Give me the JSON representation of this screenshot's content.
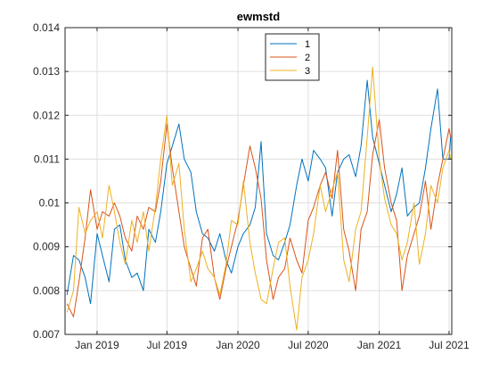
{
  "chart_data": {
    "type": "line",
    "title": "ewmstd",
    "xlabel": "",
    "ylabel": "",
    "ylim": [
      0.007,
      0.014
    ],
    "yticks": [
      0.007,
      0.008,
      0.009,
      0.01,
      0.011,
      0.012,
      0.013,
      0.014
    ],
    "ytick_labels": [
      "0.007",
      "0.008",
      "0.009",
      "0.01",
      "0.011",
      "0.012",
      "0.013",
      "0.014"
    ],
    "xlim": [
      "2018-10-10",
      "2021-07-08"
    ],
    "xticks": [
      "2019-01-01",
      "2019-07-01",
      "2020-01-01",
      "2020-07-01",
      "2021-01-01",
      "2021-07-01"
    ],
    "xtick_labels": [
      "Jan 2019",
      "Jul 2019",
      "Jan 2020",
      "Jul 2020",
      "Jan 2021",
      "Jul 2021"
    ],
    "grid": true,
    "legend_position": "top-center",
    "series": [
      {
        "name": "1",
        "color": "#0072BD",
        "x": [
          "2018-10-15",
          "2018-11-01",
          "2018-11-15",
          "2018-12-01",
          "2018-12-15",
          "2019-01-01",
          "2019-01-15",
          "2019-02-01",
          "2019-02-15",
          "2019-03-01",
          "2019-03-15",
          "2019-04-01",
          "2019-04-15",
          "2019-05-01",
          "2019-05-15",
          "2019-06-01",
          "2019-06-15",
          "2019-07-01",
          "2019-07-15",
          "2019-08-01",
          "2019-08-15",
          "2019-09-01",
          "2019-09-15",
          "2019-10-01",
          "2019-10-15",
          "2019-11-01",
          "2019-11-15",
          "2019-12-01",
          "2019-12-15",
          "2020-01-01",
          "2020-01-15",
          "2020-02-01",
          "2020-02-15",
          "2020-03-01",
          "2020-03-15",
          "2020-04-01",
          "2020-04-15",
          "2020-05-01",
          "2020-05-15",
          "2020-06-01",
          "2020-06-15",
          "2020-07-01",
          "2020-07-15",
          "2020-08-01",
          "2020-08-15",
          "2020-09-01",
          "2020-09-15",
          "2020-10-01",
          "2020-10-15",
          "2020-11-01",
          "2020-11-15",
          "2020-12-01",
          "2020-12-15",
          "2021-01-01",
          "2021-01-15",
          "2021-02-01",
          "2021-02-15",
          "2021-03-01",
          "2021-03-15",
          "2021-04-01",
          "2021-04-15",
          "2021-05-01",
          "2021-05-15",
          "2021-06-01",
          "2021-06-15",
          "2021-07-01",
          "2021-07-05"
        ],
        "values": [
          0.0079,
          0.0088,
          0.0087,
          0.0083,
          0.0077,
          0.0093,
          0.0088,
          0.0082,
          0.0094,
          0.0095,
          0.0087,
          0.0083,
          0.0084,
          0.008,
          0.0094,
          0.0091,
          0.0098,
          0.0109,
          0.0113,
          0.0118,
          0.011,
          0.0107,
          0.0098,
          0.0093,
          0.0092,
          0.0089,
          0.0093,
          0.0087,
          0.0084,
          0.009,
          0.0093,
          0.0095,
          0.0099,
          0.0114,
          0.0093,
          0.0088,
          0.0087,
          0.0091,
          0.0095,
          0.0104,
          0.011,
          0.0105,
          0.0112,
          0.011,
          0.0108,
          0.0097,
          0.0107,
          0.011,
          0.0111,
          0.0106,
          0.0113,
          0.0128,
          0.0115,
          0.0109,
          0.0104,
          0.0098,
          0.0102,
          0.0108,
          0.0097,
          0.0099,
          0.01,
          0.0108,
          0.0117,
          0.0126,
          0.011,
          0.011,
          0.0115
        ]
      },
      {
        "name": "2",
        "color": "#D95319",
        "x": [
          "2018-10-15",
          "2018-11-01",
          "2018-11-15",
          "2018-12-01",
          "2018-12-15",
          "2019-01-01",
          "2019-01-15",
          "2019-02-01",
          "2019-02-15",
          "2019-03-01",
          "2019-03-15",
          "2019-04-01",
          "2019-04-15",
          "2019-05-01",
          "2019-05-15",
          "2019-06-01",
          "2019-06-15",
          "2019-07-01",
          "2019-07-15",
          "2019-08-01",
          "2019-08-15",
          "2019-09-01",
          "2019-09-15",
          "2019-10-01",
          "2019-10-15",
          "2019-11-01",
          "2019-11-15",
          "2019-12-01",
          "2019-12-15",
          "2020-01-01",
          "2020-01-15",
          "2020-02-01",
          "2020-02-15",
          "2020-03-01",
          "2020-03-15",
          "2020-04-01",
          "2020-04-15",
          "2020-05-01",
          "2020-05-15",
          "2020-06-01",
          "2020-06-15",
          "2020-07-01",
          "2020-07-15",
          "2020-08-01",
          "2020-08-15",
          "2020-09-01",
          "2020-09-15",
          "2020-10-01",
          "2020-10-15",
          "2020-11-01",
          "2020-11-15",
          "2020-12-01",
          "2020-12-15",
          "2021-01-01",
          "2021-01-15",
          "2021-02-01",
          "2021-02-15",
          "2021-03-01",
          "2021-03-15",
          "2021-04-01",
          "2021-04-15",
          "2021-05-01",
          "2021-05-15",
          "2021-06-01",
          "2021-06-15",
          "2021-07-01",
          "2021-07-05"
        ],
        "values": [
          0.0077,
          0.0074,
          0.0082,
          0.0092,
          0.0103,
          0.0094,
          0.0098,
          0.0097,
          0.01,
          0.0097,
          0.0092,
          0.0089,
          0.0097,
          0.0094,
          0.0099,
          0.0098,
          0.0105,
          0.0118,
          0.0108,
          0.0098,
          0.009,
          0.0085,
          0.0081,
          0.0092,
          0.0094,
          0.0083,
          0.0078,
          0.0085,
          0.009,
          0.0096,
          0.0104,
          0.0113,
          0.0108,
          0.0101,
          0.0087,
          0.0078,
          0.0083,
          0.0085,
          0.0092,
          0.0087,
          0.0084,
          0.0096,
          0.0099,
          0.0104,
          0.0107,
          0.0101,
          0.0112,
          0.0094,
          0.0089,
          0.008,
          0.0094,
          0.0098,
          0.0111,
          0.0119,
          0.0108,
          0.01,
          0.0096,
          0.008,
          0.0088,
          0.0093,
          0.0097,
          0.0105,
          0.0094,
          0.0104,
          0.011,
          0.0117,
          0.0115
        ]
      },
      {
        "name": "3",
        "color": "#EDB120",
        "x": [
          "2018-10-15",
          "2018-11-01",
          "2018-11-15",
          "2018-12-01",
          "2018-12-15",
          "2019-01-01",
          "2019-01-15",
          "2019-02-01",
          "2019-02-15",
          "2019-03-01",
          "2019-03-15",
          "2019-04-01",
          "2019-04-15",
          "2019-05-01",
          "2019-05-15",
          "2019-06-01",
          "2019-06-15",
          "2019-07-01",
          "2019-07-15",
          "2019-08-01",
          "2019-08-15",
          "2019-09-01",
          "2019-09-15",
          "2019-10-01",
          "2019-10-15",
          "2019-11-01",
          "2019-11-15",
          "2019-12-01",
          "2019-12-15",
          "2020-01-01",
          "2020-01-15",
          "2020-02-01",
          "2020-02-15",
          "2020-03-01",
          "2020-03-15",
          "2020-04-01",
          "2020-04-15",
          "2020-05-01",
          "2020-05-15",
          "2020-06-01",
          "2020-06-15",
          "2020-07-01",
          "2020-07-15",
          "2020-08-01",
          "2020-08-15",
          "2020-09-01",
          "2020-09-15",
          "2020-10-01",
          "2020-10-15",
          "2020-11-01",
          "2020-11-15",
          "2020-12-01",
          "2020-12-15",
          "2021-01-01",
          "2021-01-15",
          "2021-02-01",
          "2021-02-15",
          "2021-03-01",
          "2021-03-15",
          "2021-04-01",
          "2021-04-15",
          "2021-05-01",
          "2021-05-15",
          "2021-06-01",
          "2021-06-15",
          "2021-07-01",
          "2021-07-05"
        ],
        "values": [
          0.0075,
          0.008,
          0.0099,
          0.0093,
          0.0096,
          0.0098,
          0.0092,
          0.0104,
          0.0098,
          0.0091,
          0.0086,
          0.0096,
          0.0091,
          0.0098,
          0.0089,
          0.0099,
          0.011,
          0.012,
          0.0104,
          0.0109,
          0.0094,
          0.0082,
          0.0085,
          0.0089,
          0.0085,
          0.0083,
          0.0079,
          0.0086,
          0.0096,
          0.0095,
          0.0105,
          0.0091,
          0.0084,
          0.0078,
          0.0077,
          0.0085,
          0.0091,
          0.0092,
          0.0081,
          0.0071,
          0.0083,
          0.0087,
          0.0093,
          0.0104,
          0.0098,
          0.0103,
          0.0107,
          0.0087,
          0.0082,
          0.0094,
          0.0098,
          0.0115,
          0.0131,
          0.011,
          0.0101,
          0.0095,
          0.0093,
          0.0087,
          0.0091,
          0.01,
          0.0086,
          0.0093,
          0.0104,
          0.01,
          0.0108,
          0.0112,
          0.011
        ]
      }
    ]
  }
}
